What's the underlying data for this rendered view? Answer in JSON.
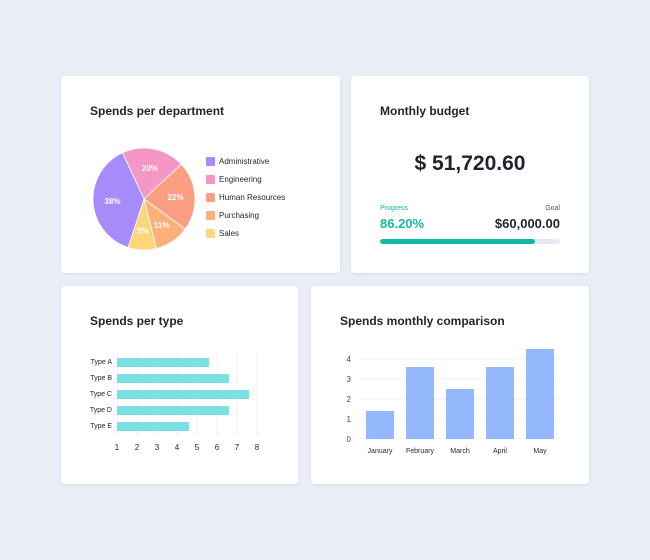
{
  "department_card": {
    "title": "Spends per department"
  },
  "budget_card": {
    "title": "Monthly budget",
    "amount": "$ 51,720.60",
    "progress_label": "Progress",
    "progress_value": "86.20%",
    "progress_fraction": 0.862,
    "goal_label": "Goal",
    "goal_value": "$60,000.00",
    "accent_color": "#14b8a6"
  },
  "type_card": {
    "title": "Spends per type"
  },
  "monthly_card": {
    "title": "Spends monthly comparison"
  },
  "chart_data": [
    {
      "type": "pie",
      "title": "Spends per department",
      "legend_position": "right",
      "slices": [
        {
          "label": "Administrative",
          "value": 38,
          "text": "38%",
          "color": "#a78bfa"
        },
        {
          "label": "Engineering",
          "value": 20,
          "text": "20%",
          "color": "#f497c4"
        },
        {
          "label": "Human Resources",
          "value": 22,
          "text": "22%",
          "color": "#fb9f83"
        },
        {
          "label": "Purchasing",
          "value": 11,
          "text": "11%",
          "color": "#fdb07a"
        },
        {
          "label": "Sales",
          "value": 9,
          "text": "9%",
          "color": "#fdd57a"
        }
      ]
    },
    {
      "type": "bar",
      "orientation": "horizontal",
      "title": "Spends per type",
      "categories": [
        "Type A",
        "Type B",
        "Type C",
        "Type D",
        "Type E"
      ],
      "values": [
        5.6,
        6.6,
        7.6,
        6.6,
        4.6
      ],
      "xlim": [
        1,
        8
      ],
      "xticks": [
        1,
        2,
        3,
        4,
        5,
        6,
        7,
        8
      ],
      "grid": "vertical",
      "color": "#7ddfe6"
    },
    {
      "type": "bar",
      "title": "Spends monthly comparison",
      "categories": [
        "January",
        "February",
        "March",
        "April",
        "May"
      ],
      "values": [
        1.4,
        3.6,
        2.5,
        3.6,
        4.5
      ],
      "ylim": [
        0,
        4.5
      ],
      "yticks": [
        0,
        1,
        2,
        3,
        4
      ],
      "grid": "horizontal",
      "color": "#93b8fb"
    }
  ]
}
